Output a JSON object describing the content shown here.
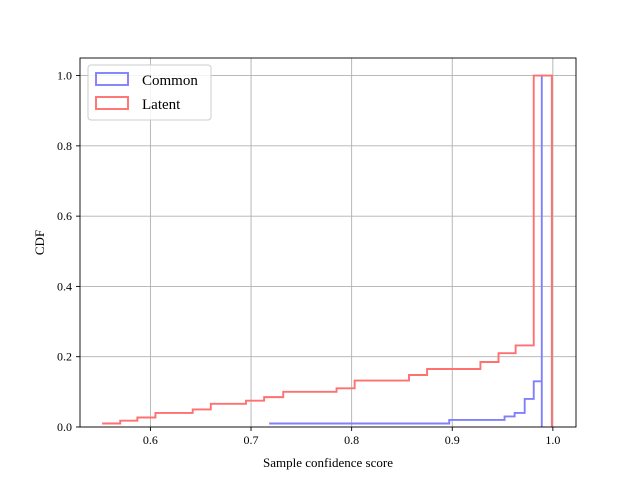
{
  "chart_data": {
    "type": "line",
    "subtype": "step-cdf",
    "xlabel": "Sample confidence score",
    "ylabel": "CDF",
    "xlim": [
      0.53,
      1.023
    ],
    "ylim": [
      0,
      1.05
    ],
    "xticks": [
      0.6,
      0.7,
      0.8,
      0.9,
      1.0
    ],
    "xtick_labels": [
      "0.6",
      "0.7",
      "0.8",
      "0.9",
      "1.0"
    ],
    "yticks": [
      0.0,
      0.2,
      0.4,
      0.6,
      0.8,
      1.0
    ],
    "ytick_labels": [
      "0.0",
      "0.2",
      "0.4",
      "0.6",
      "0.8",
      "1.0"
    ],
    "grid": true,
    "legend": {
      "position": "top-left"
    },
    "series": [
      {
        "name": "Common",
        "color": "#8080ff",
        "x": [
          0.718,
          0.885,
          0.897,
          0.952,
          0.962,
          0.972,
          0.981,
          0.989,
          0.989
        ],
        "y": [
          0.01,
          0.01,
          0.02,
          0.03,
          0.04,
          0.08,
          0.13,
          1.0,
          0.0
        ]
      },
      {
        "name": "Latent",
        "color": "#ff7070",
        "x": [
          0.552,
          0.57,
          0.587,
          0.605,
          0.642,
          0.66,
          0.695,
          0.713,
          0.732,
          0.785,
          0.803,
          0.857,
          0.875,
          0.928,
          0.946,
          0.963,
          0.981,
          0.999,
          0.999
        ],
        "y": [
          0.01,
          0.018,
          0.027,
          0.04,
          0.05,
          0.066,
          0.075,
          0.085,
          0.1,
          0.11,
          0.132,
          0.148,
          0.165,
          0.185,
          0.21,
          0.232,
          1.0,
          1.0,
          0.0
        ]
      }
    ]
  }
}
